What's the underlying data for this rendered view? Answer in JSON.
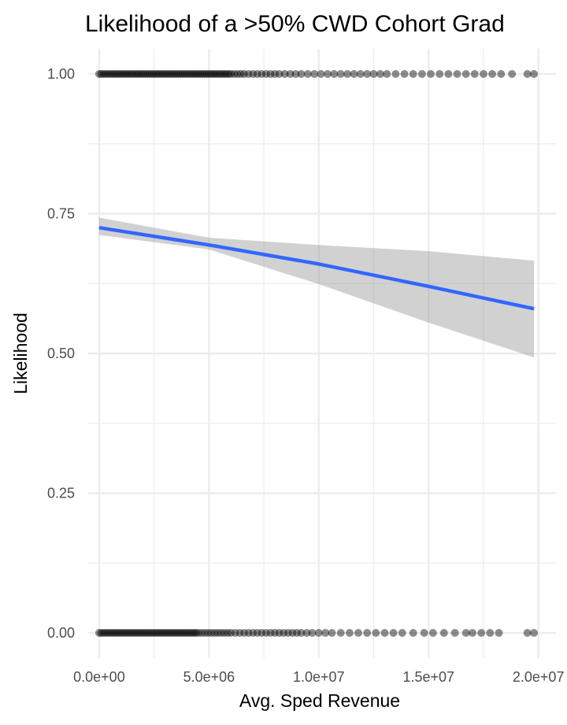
{
  "chart_data": {
    "type": "scatter",
    "title": "Likelihood of a >50% CWD Cohort Grad",
    "xlabel": "Avg. Sped Revenue",
    "ylabel": "Likelihood",
    "xlim": [
      -500000,
      20800000
    ],
    "ylim": [
      -0.045,
      1.045
    ],
    "x_ticks": [
      0,
      5000000,
      10000000,
      15000000,
      20000000
    ],
    "x_tick_labels": [
      "0.0e+00",
      "5.0e+06",
      "1.0e+07",
      "1.5e+07",
      "2.0e+07"
    ],
    "y_ticks": [
      0,
      0.25,
      0.5,
      0.75,
      1.0
    ],
    "y_tick_labels": [
      "0.00",
      "0.25",
      "0.50",
      "0.75",
      "1.00"
    ],
    "grid": true,
    "colors": {
      "points": "#000000",
      "fit_line": "#3366FF",
      "ribbon": "#999999",
      "grid": "#EBEBEB"
    },
    "series": [
      {
        "kind": "points",
        "y": 1,
        "x": [
          0,
          100000,
          200000,
          300000,
          400000,
          500000,
          600000,
          700000,
          800000,
          900000,
          1000000,
          1100000,
          1200000,
          1300000,
          1400000,
          1500000,
          1600000,
          1700000,
          1800000,
          1900000,
          2000000,
          2100000,
          2200000,
          2300000,
          2400000,
          2500000,
          2600000,
          2700000,
          2800000,
          2900000,
          3000000,
          3100000,
          3200000,
          3300000,
          3400000,
          3500000,
          3600000,
          3700000,
          3800000,
          3900000,
          4000000,
          4100000,
          4200000,
          4300000,
          4400000,
          4500000,
          4600000,
          4700000,
          4800000,
          4900000,
          5000000,
          5100000,
          5200000,
          5300000,
          5400000,
          5500000,
          5600000,
          5700000,
          5800000,
          5900000,
          6000000,
          6150000,
          6300000,
          6450000,
          6600000,
          6800000,
          7000000,
          7200000,
          7400000,
          7600000,
          7800000,
          8000000,
          8200000,
          8450000,
          8700000,
          8950000,
          9200000,
          9500000,
          9800000,
          10100000,
          10400000,
          10700000,
          11000000,
          11300000,
          11600000,
          11900000,
          12200000,
          12500000,
          12800000,
          13100000,
          13500000,
          13900000,
          14300000,
          14700000,
          15100000,
          15500000,
          15900000,
          16300000,
          16700000,
          17100000,
          17500000,
          17900000,
          18300000,
          18800000,
          19500000,
          19800000
        ]
      },
      {
        "kind": "points",
        "y": 0,
        "x": [
          0,
          100000,
          200000,
          300000,
          400000,
          500000,
          600000,
          700000,
          800000,
          900000,
          1000000,
          1100000,
          1200000,
          1300000,
          1400000,
          1500000,
          1600000,
          1700000,
          1800000,
          1900000,
          2000000,
          2100000,
          2200000,
          2300000,
          2400000,
          2500000,
          2600000,
          2700000,
          2800000,
          2900000,
          3000000,
          3100000,
          3200000,
          3300000,
          3400000,
          3500000,
          3600000,
          3700000,
          3800000,
          3900000,
          4000000,
          4100000,
          4200000,
          4300000,
          4400000,
          4500000,
          4650000,
          4800000,
          4950000,
          5100000,
          5250000,
          5400000,
          5550000,
          5700000,
          5850000,
          6000000,
          6200000,
          6400000,
          6600000,
          6800000,
          7000000,
          7200000,
          7400000,
          7600000,
          7800000,
          8000000,
          8200000,
          8400000,
          8600000,
          8800000,
          9000000,
          9200000,
          9450000,
          9700000,
          10000000,
          10300000,
          10600000,
          11000000,
          11400000,
          11800000,
          12200000,
          12600000,
          13000000,
          13400000,
          13800000,
          14300000,
          14800000,
          15200000,
          15700000,
          16200000,
          16700000,
          17000000,
          17400000,
          17800000,
          18200000,
          19500000,
          19800000
        ]
      },
      {
        "kind": "fit",
        "x": [
          0,
          5000000,
          10000000,
          15000000,
          19800000
        ],
        "y": [
          0.725,
          0.694,
          0.66,
          0.62,
          0.58
        ],
        "ymin": [
          0.712,
          0.686,
          0.624,
          0.555,
          0.493
        ],
        "ymax": [
          0.743,
          0.707,
          0.694,
          0.683,
          0.666
        ]
      }
    ]
  }
}
